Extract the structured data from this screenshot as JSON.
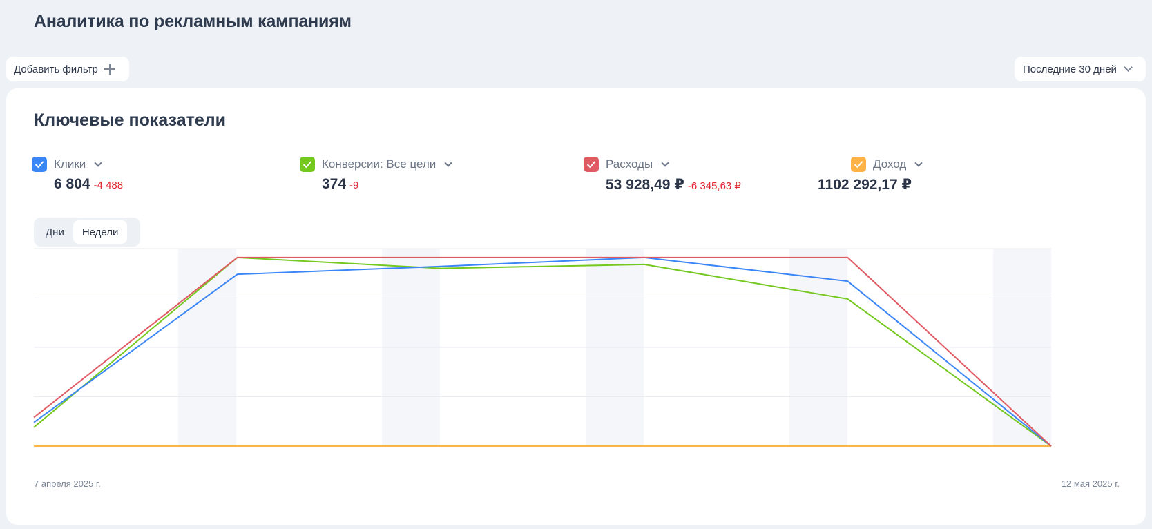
{
  "page": {
    "title": "Аналитика по рекламным кампаниям"
  },
  "toolbar": {
    "add_filter_label": "Добавить фильтр",
    "period_label": "Последние 30 дней"
  },
  "card": {
    "title": "Ключевые показатели",
    "metrics": [
      {
        "label": "Клики",
        "value": "6 804",
        "delta": "-4 488",
        "color": "#3b86f7",
        "checked": true
      },
      {
        "label": "Конверсии: Все цели",
        "value": "374",
        "delta": "-9",
        "color": "#75c81e",
        "checked": true
      },
      {
        "label": "Расходы",
        "value": "53 928,49 ₽",
        "delta": "-6 345,63 ₽",
        "color": "#e05a64",
        "checked": true
      },
      {
        "label": "Доход",
        "value": "1102 292,17 ₽",
        "delta": "",
        "color": "#ffb347",
        "checked": true
      }
    ],
    "granularity": {
      "options": [
        "Дни",
        "Недели"
      ],
      "selected": "Недели"
    }
  },
  "chart_data": {
    "type": "line",
    "x_start_label": "7 апреля 2025 г.",
    "x_end_label": "12 мая 2025 г.",
    "x": [
      "2025-04-07",
      "2025-04-14",
      "2025-04-21",
      "2025-04-28",
      "2025-05-05",
      "2025-05-12"
    ],
    "grid": true,
    "series": [
      {
        "name": "Клики",
        "color": "#3b86f7",
        "values_relative": [
          0.12,
          0.87,
          0.91,
          0.955,
          0.835,
          0.0
        ]
      },
      {
        "name": "Конверсии: Все цели",
        "color": "#75c81e",
        "values_relative": [
          0.095,
          0.955,
          0.9,
          0.92,
          0.745,
          0.0
        ]
      },
      {
        "name": "Расходы",
        "color": "#e05a64",
        "values_relative": [
          0.145,
          0.955,
          0.955,
          0.955,
          0.955,
          0.0
        ]
      },
      {
        "name": "Доход",
        "color": "#ffb347",
        "values_relative": [
          0.0,
          0.0,
          0.0,
          0.0,
          0.0,
          0.0
        ]
      }
    ]
  }
}
